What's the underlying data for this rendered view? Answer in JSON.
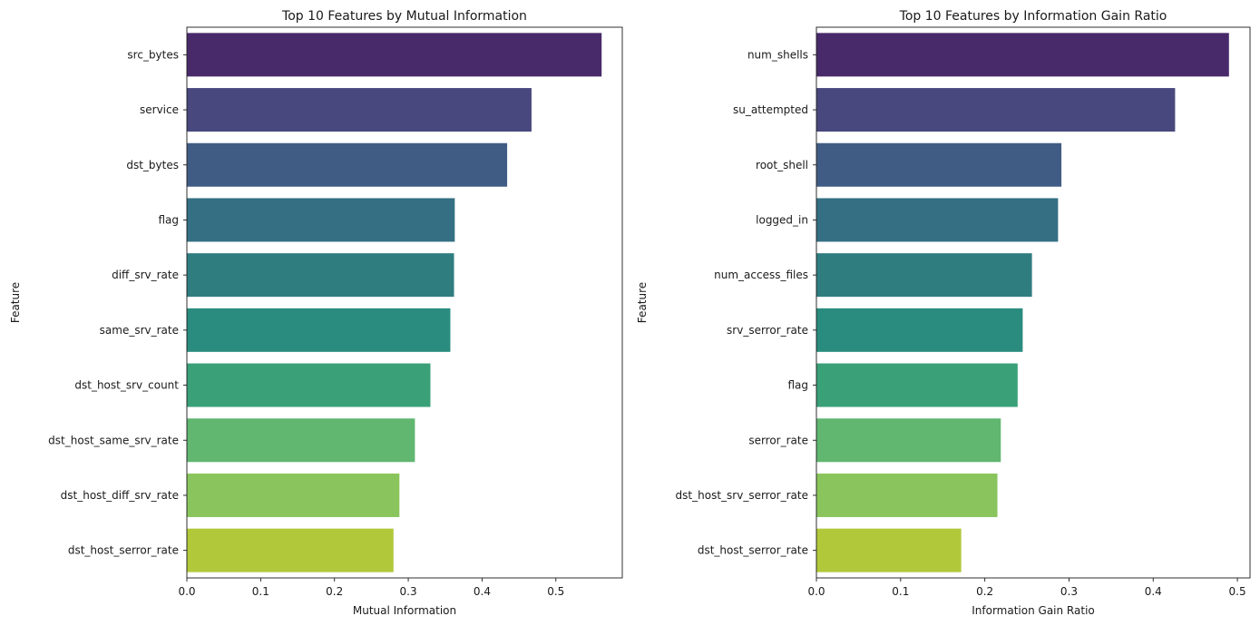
{
  "chart_data": [
    {
      "type": "bar",
      "orientation": "horizontal",
      "title": "Top 10 Features by Mutual Information",
      "xlabel": "Mutual Information",
      "ylabel": "Feature",
      "xlim": [
        0,
        0.59
      ],
      "xticks": [
        0.0,
        0.1,
        0.2,
        0.3,
        0.4,
        0.5
      ],
      "xtick_labels": [
        "0.0",
        "0.1",
        "0.2",
        "0.3",
        "0.4",
        "0.5"
      ],
      "categories": [
        "src_bytes",
        "service",
        "dst_bytes",
        "flag",
        "diff_srv_rate",
        "same_srv_rate",
        "dst_host_srv_count",
        "dst_host_same_srv_rate",
        "dst_host_diff_srv_rate",
        "dst_host_serror_rate"
      ],
      "values": [
        0.562,
        0.467,
        0.434,
        0.363,
        0.362,
        0.357,
        0.33,
        0.309,
        0.288,
        0.28
      ],
      "colors": [
        "#482A6A",
        "#48487E",
        "#415C84",
        "#346F83",
        "#307D80",
        "#2A8C7E",
        "#3AA078",
        "#61B670",
        "#89C55C",
        "#B2C83B"
      ],
      "grid": false,
      "legend": "none"
    },
    {
      "type": "bar",
      "orientation": "horizontal",
      "title": "Top 10 Features by Information Gain Ratio",
      "xlabel": "Information Gain Ratio",
      "ylabel": "Feature",
      "xlim": [
        0,
        0.515
      ],
      "xticks": [
        0.0,
        0.1,
        0.2,
        0.3,
        0.4,
        0.5
      ],
      "xtick_labels": [
        "0.0",
        "0.1",
        "0.2",
        "0.3",
        "0.4",
        "0.5"
      ],
      "categories": [
        "num_shells",
        "su_attempted",
        "root_shell",
        "logged_in",
        "num_access_files",
        "srv_serror_rate",
        "flag",
        "serror_rate",
        "dst_host_srv_serror_rate",
        "dst_host_serror_rate"
      ],
      "values": [
        0.49,
        0.426,
        0.291,
        0.287,
        0.256,
        0.245,
        0.239,
        0.219,
        0.215,
        0.172
      ],
      "colors": [
        "#482A6A",
        "#48487E",
        "#415C84",
        "#346F83",
        "#307D80",
        "#2A8C7E",
        "#3AA078",
        "#61B670",
        "#89C55C",
        "#B2C83B"
      ],
      "grid": false,
      "legend": "none"
    }
  ]
}
